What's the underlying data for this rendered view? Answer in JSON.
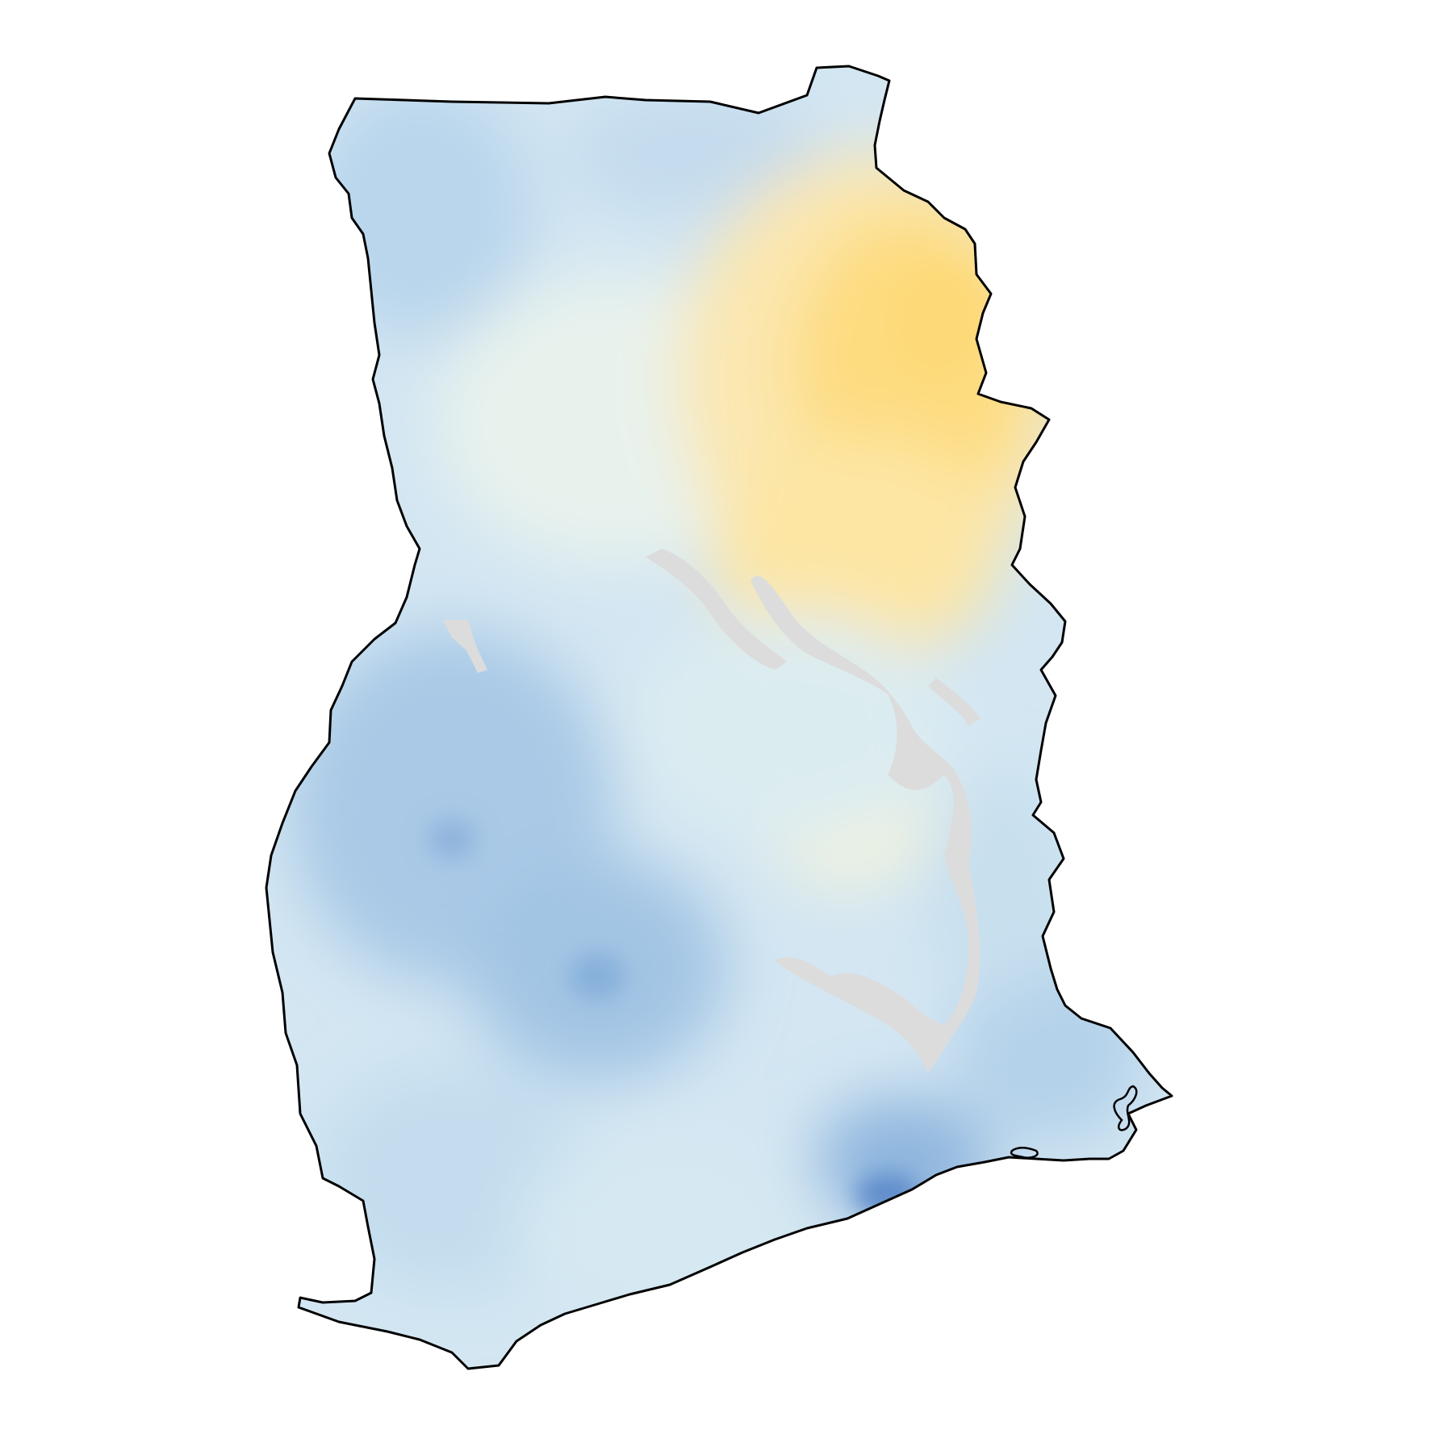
{
  "map": {
    "region": "Ghana",
    "colors": {
      "background": "#ffffff",
      "border": "#000000",
      "high_blue": "#4a7bc0",
      "mid_blue": "#9dc3e2",
      "light_blue": "#d7ebf3",
      "neutral": "#f2f6e8",
      "light_yellow": "#fbeab5",
      "yellow": "#fddc80",
      "no_data": "#dcdcdc"
    },
    "layers": [
      "value-raster",
      "no-data-water",
      "country-border"
    ]
  }
}
